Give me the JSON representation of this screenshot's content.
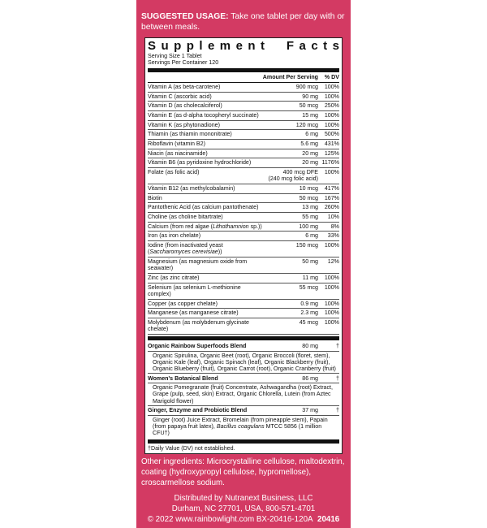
{
  "usage": {
    "label": "SUGGESTED USAGE:",
    "text": " Take one tablet per day with or between meals."
  },
  "facts": {
    "title": "Supplement Facts",
    "serving_size": "Serving Size 1 Tablet",
    "servings": "Servings Per Container 120",
    "col_amount": "Amount Per Serving",
    "col_dv": "% DV",
    "nutrients": [
      {
        "name": "Vitamin A (as beta-carotene)",
        "amount": "900 mcg",
        "dv": "100%"
      },
      {
        "name": "Vitamin C (ascorbic acid)",
        "amount": "90 mg",
        "dv": "100%"
      },
      {
        "name": "Vitamin D (as cholecalciferol)",
        "amount": "50 mcg",
        "dv": "250%"
      },
      {
        "name": "Vitamin E (as d-alpha tocopheryl succinate)",
        "amount": "15 mg",
        "dv": "100%"
      },
      {
        "name": "Vitamin K (as phytonadione)",
        "amount": "120 mcg",
        "dv": "100%"
      },
      {
        "name": "Thiamin (as thiamin mononitrate)",
        "amount": "6 mg",
        "dv": "500%"
      },
      {
        "name": "Riboflavin (vitamin B2)",
        "amount": "5.6 mg",
        "dv": "431%"
      },
      {
        "name": "Niacin (as niacinamide)",
        "amount": "20 mg",
        "dv": "125%"
      },
      {
        "name": "Vitamin B6 (as pyridoxine hydrochloride)",
        "amount": "20 mg",
        "dv": "1176%"
      },
      {
        "name": "Folate (as folic acid)",
        "amount": "400 mcg DFE",
        "amount2": "(240 mcg folic acid)",
        "dv": "100%"
      },
      {
        "name": "Vitamin B12 (as methylcobalamin)",
        "amount": "10 mcg",
        "dv": "417%"
      },
      {
        "name": "Biotin",
        "amount": "50 mcg",
        "dv": "167%"
      },
      {
        "name": "Pantothenic Acid (as calcium pantothenate)",
        "amount": "13 mg",
        "dv": "260%"
      },
      {
        "name": "Choline (as choline bitartrate)",
        "amount": "55 mg",
        "dv": "10%"
      },
      {
        "name": "Calcium (from red algae (",
        "italic": "Lithothamnion",
        "suffix": " sp.))",
        "amount": "100 mg",
        "dv": "8%"
      },
      {
        "name": "Iron (as iron chelate)",
        "amount": "6 mg",
        "dv": "33%"
      },
      {
        "name": "Iodine (from inactivated yeast (",
        "italic": "Saccharomyces cerevisiae",
        "suffix": "))",
        "amount": "150 mcg",
        "dv": "100%"
      },
      {
        "name": "Magnesium (as magnesium oxide from seawater)",
        "amount": "50 mg",
        "dv": "12%"
      },
      {
        "name": "Zinc (as zinc citrate)",
        "amount": "11 mg",
        "dv": "100%"
      },
      {
        "name": "Selenium (as selenium L-methionine complex)",
        "amount": "55 mcg",
        "dv": "100%"
      },
      {
        "name": "Copper (as copper chelate)",
        "amount": "0.9 mg",
        "dv": "100%"
      },
      {
        "name": "Manganese (as manganese citrate)",
        "amount": "2.3 mg",
        "dv": "100%"
      },
      {
        "name": "Molybdenum (as molybdenum glycinate chelate)",
        "amount": "45 mcg",
        "dv": "100%"
      }
    ],
    "blends": [
      {
        "name": "Organic Rainbow Superfoods Blend",
        "amount": "80 mg",
        "dv": "†",
        "desc": "Organic Spirulina, Organic Beet (root), Organic Broccoli (floret, stem), Organic Kale (leaf), Organic Spinach (leaf), Organic Blackberry (fruit), Organic Blueberry (fruit), Organic Carrot (root), Organic Cranberry (fruit)"
      },
      {
        "name": "Women's Botanical Blend",
        "amount": "86 mg",
        "dv": "†",
        "desc": "Organic Pomegranate (fruit) Concentrate, Ashwagandha (root) Extract, Grape (pulp, seed, skin) Extract, Organic Chlorella, Lutein (from Aztec Marigold flower)"
      },
      {
        "name": "Ginger, Enzyme and Probiotic Blend",
        "amount": "37 mg",
        "dv": "†",
        "desc": "Ginger (root) Juice Extract, Bromelain (from pineapple stem), Papain (from papaya fruit latex), ",
        "desc_italic": "Bacillus coagulans",
        "desc_suffix": " MTCC 5856 (1 million CFU†)"
      }
    ],
    "footnote": "†Daily Value (DV) not established."
  },
  "other_ingredients": "Other ingredients: Microcrystalline cellulose, maltodextrin, coating (hydroxypropyl cellulose, hypromellose), croscarmellose sodium.",
  "distributor": {
    "line1": "Distributed by Nutranext Business, LLC",
    "line2": "Durham, NC 27701, USA, 800-571-4701",
    "line3": "© 2022 www.rainbowlight.com  BX-20416-120A",
    "code": "20416"
  },
  "colors": {
    "panel": "#d33a63"
  }
}
